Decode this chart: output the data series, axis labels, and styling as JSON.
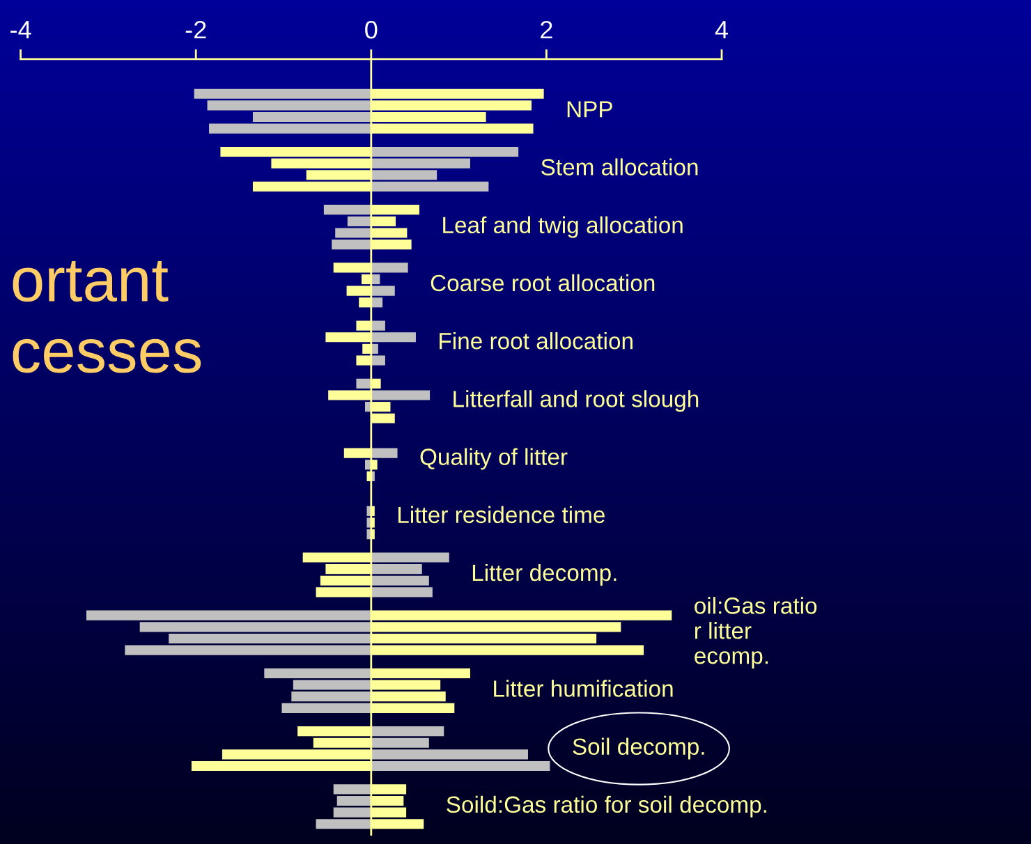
{
  "chart_data": {
    "type": "bar",
    "orientation": "horizontal",
    "stacked": true,
    "categories": [
      null,
      "NPP",
      null,
      null,
      null,
      null,
      "Stem allocation",
      null,
      null,
      null,
      null,
      "Leaf and twig allocation",
      null,
      null,
      null,
      null,
      "Coarse root allocation",
      null,
      null,
      null,
      null,
      "Fine root allocation",
      null,
      null,
      null,
      null,
      "Litterfall and root slough",
      null,
      null,
      null,
      null,
      "Quality of litter",
      null,
      null,
      null,
      null,
      "Litter residence time",
      null,
      null,
      null,
      null,
      "Litter decomp.",
      null,
      null,
      null,
      null,
      "oil:Gas ratio\nr litter\necomp.",
      null,
      null,
      null,
      null,
      "Litter humification",
      null,
      null,
      null,
      null,
      "Soil decomp.",
      null,
      null,
      null,
      null,
      "Soild:Gas ratio for soil decomp.",
      null,
      null
    ],
    "series": [
      {
        "values": [
          -2.02,
          -1.87,
          -1.35,
          -1.85,
          null,
          -1.72,
          -1.14,
          -0.74,
          -1.35,
          null,
          -0.54,
          -0.27,
          -0.41,
          -0.45,
          null,
          -0.43,
          -0.11,
          -0.28,
          -0.14,
          null,
          -0.17,
          -0.52,
          -0.1,
          -0.17,
          null,
          -0.17,
          -0.49,
          -0.07,
          null,
          null,
          null,
          -0.31,
          -0.07,
          -0.05,
          null,
          null,
          -0.05,
          -0.05,
          -0.05,
          null,
          -0.78,
          -0.52,
          -0.58,
          -0.63,
          null,
          -3.25,
          -2.64,
          -2.31,
          -2.81,
          null,
          -1.22,
          -0.89,
          -0.91,
          -1.02,
          null,
          -0.84,
          -0.66,
          -1.7,
          -2.05,
          null,
          -0.43,
          -0.39,
          -0.43,
          -0.63
        ],
        "colors": [
          "#c0c0c0",
          "#c0c0c0",
          "#c0c0c0",
          "#c0c0c0",
          null,
          "#ffff99",
          "#ffff99",
          "#ffff99",
          "#ffff99",
          null,
          "#c0c0c0",
          "#c0c0c0",
          "#c0c0c0",
          "#c0c0c0",
          null,
          "#ffff99",
          "#ffff99",
          "#ffff99",
          "#ffff99",
          null,
          "#ffff99",
          "#ffff99",
          "#ffff99",
          "#ffff99",
          null,
          "#c0c0c0",
          "#ffff99",
          "#c0c0c0",
          "#c0c0c0",
          null,
          "#c0c0c0",
          "#ffff99",
          "#c0c0c0",
          "#ffff99",
          null,
          "#c0c0c0",
          "#c0c0c0",
          "#c0c0c0",
          "#c0c0c0",
          null,
          "#ffff99",
          "#ffff99",
          "#ffff99",
          "#ffff99",
          null,
          "#c0c0c0",
          "#c0c0c0",
          "#c0c0c0",
          "#c0c0c0",
          null,
          "#c0c0c0",
          "#c0c0c0",
          "#c0c0c0",
          "#c0c0c0",
          null,
          "#ffff99",
          "#ffff99",
          "#ffff99",
          "#ffff99",
          null,
          "#c0c0c0",
          "#c0c0c0",
          "#c0c0c0",
          "#c0c0c0"
        ]
      },
      {
        "values": [
          1.97,
          1.83,
          1.31,
          1.85,
          null,
          1.68,
          1.13,
          0.75,
          1.34,
          null,
          0.55,
          0.28,
          0.41,
          0.46,
          null,
          0.42,
          0.1,
          0.27,
          0.13,
          null,
          0.16,
          0.51,
          0.08,
          0.16,
          null,
          0.11,
          0.67,
          0.22,
          0.27,
          null,
          null,
          0.3,
          0.07,
          0.04,
          null,
          null,
          0.04,
          0.04,
          0.04,
          null,
          0.89,
          0.58,
          0.66,
          0.7,
          null,
          3.43,
          2.85,
          2.57,
          3.11,
          null,
          1.13,
          0.79,
          0.85,
          0.95,
          null,
          0.83,
          0.66,
          1.79,
          2.04,
          null,
          0.4,
          0.37,
          0.4,
          0.6
        ],
        "colors": [
          "#ffff99",
          "#ffff99",
          "#ffff99",
          "#ffff99",
          null,
          "#c0c0c0",
          "#c0c0c0",
          "#c0c0c0",
          "#c0c0c0",
          null,
          "#ffff99",
          "#ffff99",
          "#ffff99",
          "#ffff99",
          null,
          "#c0c0c0",
          "#c0c0c0",
          "#c0c0c0",
          "#c0c0c0",
          null,
          "#c0c0c0",
          "#c0c0c0",
          "#c0c0c0",
          "#c0c0c0",
          null,
          "#ffff99",
          "#c0c0c0",
          "#ffff99",
          "#ffff99",
          null,
          "#ffff99",
          "#c0c0c0",
          "#ffff99",
          "#c0c0c0",
          null,
          "#ffff99",
          "#ffff99",
          "#ffff99",
          "#ffff99",
          null,
          "#c0c0c0",
          "#c0c0c0",
          "#c0c0c0",
          "#c0c0c0",
          null,
          "#ffff99",
          "#ffff99",
          "#ffff99",
          "#ffff99",
          null,
          "#ffff99",
          "#ffff99",
          "#ffff99",
          "#ffff99",
          null,
          "#c0c0c0",
          "#c0c0c0",
          "#c0c0c0",
          "#c0c0c0",
          null,
          "#ffff99",
          "#ffff99",
          "#ffff99",
          "#ffff99"
        ]
      }
    ],
    "xlim": [
      -4,
      4
    ],
    "xticks": [
      -4,
      -2,
      0,
      2,
      4
    ],
    "grid": false,
    "legend": false,
    "ref_lines": [
      {
        "axis": "x",
        "value": 0,
        "color": "#ffff99"
      }
    ],
    "annotations": [
      "ortant\ncesses"
    ]
  }
}
